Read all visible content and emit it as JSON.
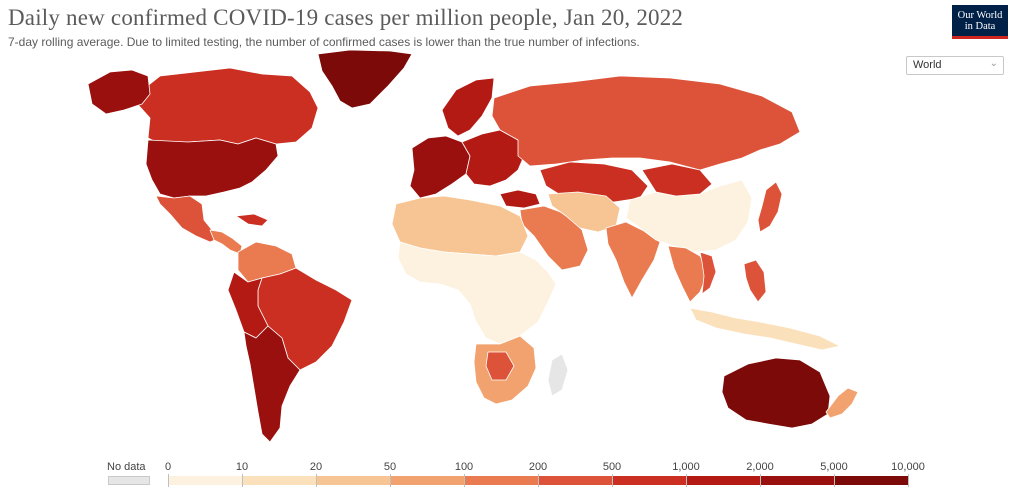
{
  "title": "Daily new confirmed COVID-19 cases per million people, Jan 20, 2022",
  "subtitle": "7-day rolling average. Due to limited testing, the number of confirmed cases is lower than the true number of infections.",
  "logo": {
    "line1": "Our World",
    "line2": "in Data"
  },
  "region_select": {
    "value": "World"
  },
  "legend": {
    "no_data_label": "No data",
    "no_data_color": "#e6e6e6",
    "ticks": [
      "0",
      "10",
      "20",
      "50",
      "100",
      "200",
      "500",
      "1,000",
      "2,000",
      "5,000",
      "10,000"
    ],
    "colors": [
      "#fdf2df",
      "#fbe1bb",
      "#f7c593",
      "#f2a26e",
      "#ea7a4f",
      "#dd5339",
      "#cb2f22",
      "#b41a14",
      "#99100e",
      "#7b0a08"
    ]
  },
  "colors": {
    "ocean": "#ffffff",
    "border": "#ffffff",
    "title": "#5b5b5b"
  },
  "map_data": [
    {
      "region": "Greenland",
      "bin": 9
    },
    {
      "region": "Canada",
      "bin": 6
    },
    {
      "region": "United States",
      "bin": 8
    },
    {
      "region": "Alaska",
      "bin": 8
    },
    {
      "region": "Mexico",
      "bin": 5
    },
    {
      "region": "Central America",
      "bin": 4
    },
    {
      "region": "Caribbean",
      "bin": 6
    },
    {
      "region": "Colombia / Venezuela",
      "bin": 4
    },
    {
      "region": "Brazil",
      "bin": 6
    },
    {
      "region": "Peru / Bolivia",
      "bin": 7
    },
    {
      "region": "Argentina / Chile",
      "bin": 8
    },
    {
      "region": "Western Europe",
      "bin": 8
    },
    {
      "region": "Eastern Europe",
      "bin": 7
    },
    {
      "region": "Scandinavia",
      "bin": 7
    },
    {
      "region": "Russia",
      "bin": 5
    },
    {
      "region": "Kazakhstan",
      "bin": 6
    },
    {
      "region": "Turkey",
      "bin": 7
    },
    {
      "region": "Middle East",
      "bin": 4
    },
    {
      "region": "Iran / Central Asia",
      "bin": 2
    },
    {
      "region": "North Africa",
      "bin": 2
    },
    {
      "region": "Sub-Saharan Africa",
      "bin": 0
    },
    {
      "region": "Southern Africa",
      "bin": 3
    },
    {
      "region": "Botswana",
      "bin": 5
    },
    {
      "region": "India",
      "bin": 4
    },
    {
      "region": "China",
      "bin": 0
    },
    {
      "region": "Mongolia",
      "bin": 6
    },
    {
      "region": "Japan",
      "bin": 5
    },
    {
      "region": "Southeast Asia",
      "bin": 4
    },
    {
      "region": "Vietnam",
      "bin": 5
    },
    {
      "region": "Philippines",
      "bin": 5
    },
    {
      "region": "Indonesia",
      "bin": 1
    },
    {
      "region": "Australia",
      "bin": 9
    },
    {
      "region": "New Zealand",
      "bin": 3
    },
    {
      "region": "Madagascar",
      "bin": -1
    }
  ]
}
